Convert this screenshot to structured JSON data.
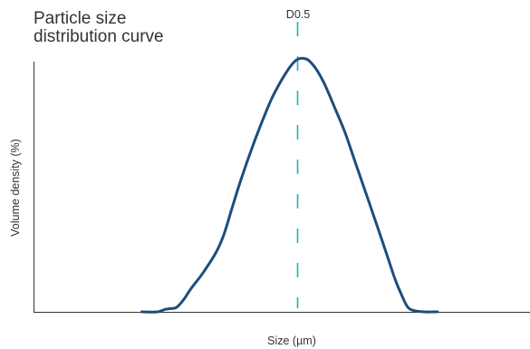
{
  "chart_data": {
    "type": "line",
    "title_line1": "Particle size",
    "title_line2": "distribution curve",
    "xlabel": "Size (µm)",
    "ylabel": "Volume density (%)",
    "marker": {
      "label": "D0.5",
      "x": 0.5,
      "style": "dashed",
      "color": "#17b1c1"
    },
    "xlim": [
      0,
      1
    ],
    "ylim": [
      0,
      1
    ],
    "grid": false,
    "series": [
      {
        "color": "#1d4e7c",
        "x": [
          0.205,
          0.235,
          0.25,
          0.268,
          0.275,
          0.285,
          0.298,
          0.32,
          0.345,
          0.36,
          0.375,
          0.39,
          0.41,
          0.43,
          0.45,
          0.465,
          0.478,
          0.49,
          0.5,
          0.51,
          0.52,
          0.535,
          0.55,
          0.57,
          0.59,
          0.61,
          0.63,
          0.65,
          0.668,
          0.684,
          0.696,
          0.708,
          0.72,
          0.74,
          0.765
        ],
        "y": [
          0.0,
          0.0,
          0.01,
          0.015,
          0.025,
          0.05,
          0.09,
          0.15,
          0.23,
          0.3,
          0.4,
          0.5,
          0.62,
          0.73,
          0.83,
          0.89,
          0.935,
          0.97,
          0.988,
          0.992,
          0.985,
          0.95,
          0.895,
          0.8,
          0.7,
          0.58,
          0.46,
          0.34,
          0.23,
          0.13,
          0.07,
          0.02,
          0.005,
          0.0,
          0.0
        ]
      }
    ]
  }
}
